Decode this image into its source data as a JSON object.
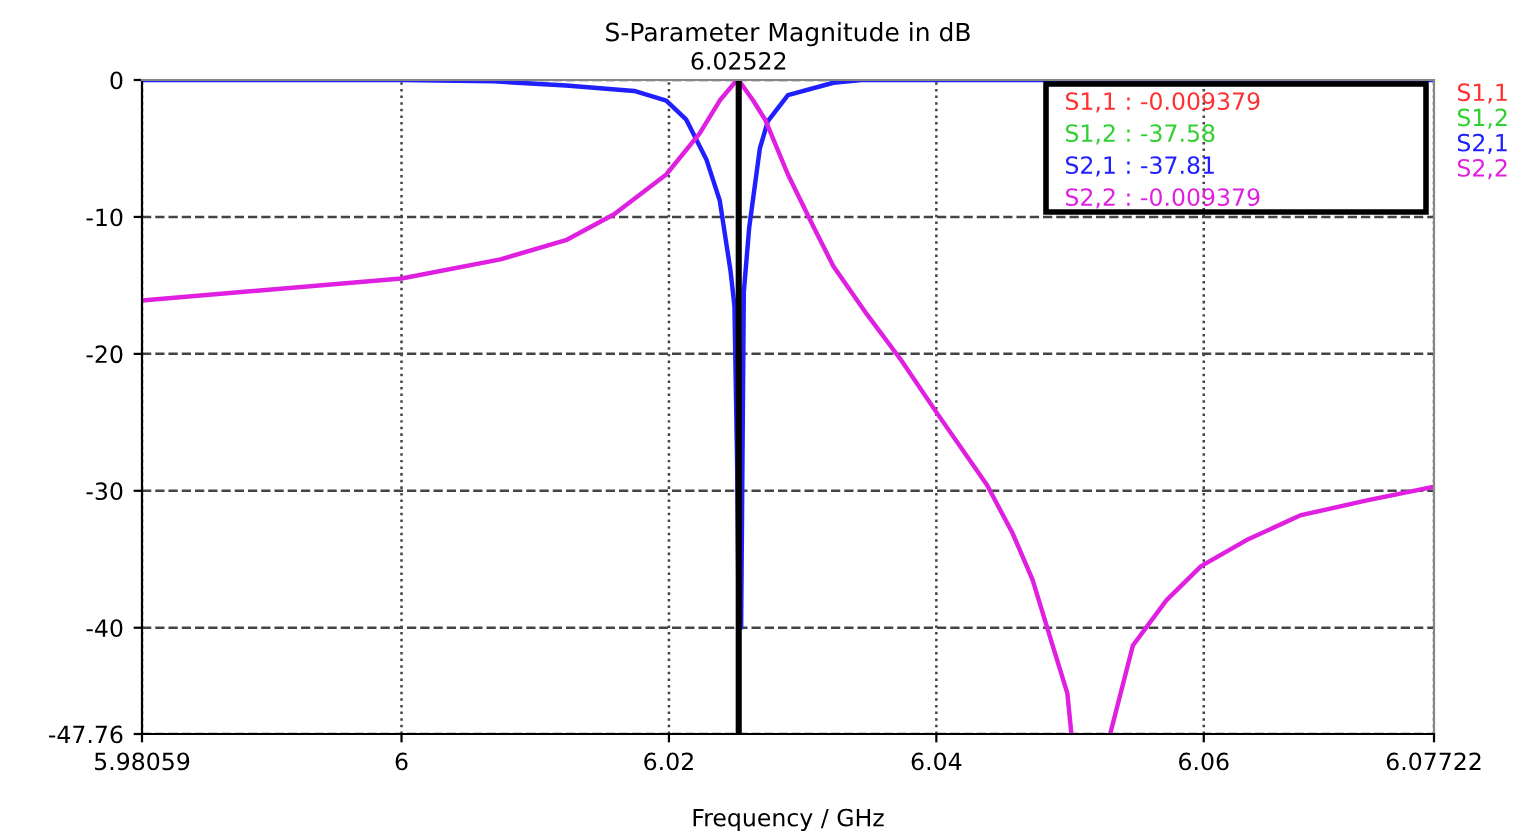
{
  "chart_data": {
    "type": "line",
    "title": "S-Parameter Magnitude in dB",
    "xlabel": "Frequency / GHz",
    "xlim": [
      5.98059,
      6.07722
    ],
    "xticks": [
      5.98059,
      6,
      6.02,
      6.04,
      6.06,
      6.07722
    ],
    "ylim": [
      -47.76,
      0
    ],
    "yticks": [
      -47.76,
      -40,
      -30,
      -20,
      -10,
      0
    ],
    "grid": true,
    "legend": "top right",
    "line_style": "solid",
    "marker": "none",
    "ref_lines": [
      {
        "axis": "x",
        "value": 6.02522,
        "label": "6.02522",
        "color": "#000000"
      }
    ],
    "annotations": [
      "S1,1 : -0.009379",
      "S1,2 : -37.58",
      "S2,1 : -37.81",
      "S2,2 : -0.009379"
    ],
    "series": [
      {
        "name": "S1,1",
        "color": "#ff3030"
      },
      {
        "name": "S1,2",
        "color": "#30d030"
      },
      {
        "name": "S2,1",
        "color": "#2020ff",
        "x": [
          5.98059,
          6.0,
          6.0069,
          6.0123,
          6.0174,
          6.0198,
          6.0213,
          6.0228,
          6.0238,
          6.0246,
          6.0249,
          6.0251,
          6.0252,
          6.0254,
          6.0256,
          6.026,
          6.0268,
          6.0274,
          6.0289,
          6.0323,
          6.0344,
          6.07722
        ],
        "values": [
          0,
          0,
          -0.1,
          -0.4,
          -0.8,
          -1.5,
          -2.9,
          -5.8,
          -8.8,
          -13.9,
          -16.5,
          -28,
          -38,
          -40,
          -15.5,
          -10.8,
          -5,
          -3,
          -1.1,
          -0.2,
          0,
          0
        ]
      },
      {
        "name": "S2,2",
        "color": "#e020e0",
        "x": [
          5.98059,
          6.0,
          6.0074,
          6.0123,
          6.0159,
          6.0198,
          6.0223,
          6.0238,
          6.025,
          6.0252,
          6.0263,
          6.0272,
          6.0289,
          6.0308,
          6.0323,
          6.0348,
          6.0374,
          6.0401,
          6.0438,
          6.0457,
          6.0472,
          6.0487,
          6.0498,
          6.0501,
          6.0515,
          6.053,
          6.0547,
          6.0572,
          6.0598,
          6.0632,
          6.0672,
          6.0722,
          6.07722
        ],
        "values": [
          -16.1,
          -14.5,
          -13.1,
          -11.7,
          -9.8,
          -6.9,
          -3.9,
          -1.5,
          -0.1,
          0,
          -1.5,
          -2.9,
          -6.9,
          -10.7,
          -13.6,
          -17.1,
          -20.5,
          -24.4,
          -29.6,
          -33.1,
          -36.5,
          -41.3,
          -44.8,
          -47.76,
          null,
          -47.76,
          -41.3,
          -38.0,
          -35.5,
          -33.6,
          -31.8,
          -30.7,
          -29.7
        ]
      }
    ]
  }
}
